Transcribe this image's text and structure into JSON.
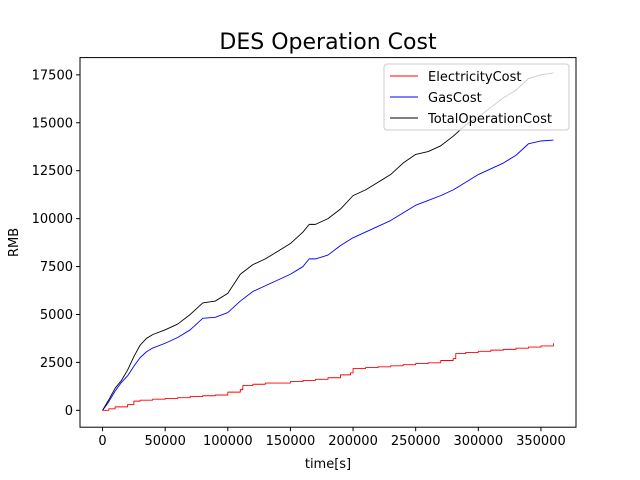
{
  "chart_data": {
    "type": "line",
    "title": "DES Operation Cost",
    "xlabel": "time[s]",
    "ylabel": "RMB",
    "xlim": [
      -18000,
      378000
    ],
    "ylim": [
      -880,
      18400
    ],
    "xticks": [
      0,
      50000,
      100000,
      150000,
      200000,
      250000,
      300000,
      350000
    ],
    "xtick_labels": [
      "0",
      "50000",
      "100000",
      "150000",
      "200000",
      "250000",
      "300000",
      "350000"
    ],
    "yticks": [
      0,
      2500,
      5000,
      7500,
      10000,
      12500,
      15000,
      17500
    ],
    "ytick_labels": [
      "0",
      "2500",
      "5000",
      "7500",
      "10000",
      "12500",
      "15000",
      "17500"
    ],
    "grid": false,
    "legend_position": "top-right",
    "series": [
      {
        "name": "ElectricityCost",
        "color": "#ff0000",
        "x": [
          0,
          5000,
          10000,
          20000,
          25000,
          30000,
          40000,
          50000,
          60000,
          70000,
          80000,
          90000,
          100000,
          110000,
          112000,
          120000,
          130000,
          150000,
          160000,
          170000,
          180000,
          190000,
          198000,
          200000,
          210000,
          220000,
          230000,
          240000,
          250000,
          260000,
          270000,
          280000,
          282000,
          290000,
          300000,
          310000,
          320000,
          330000,
          340000,
          350000,
          360000
        ],
        "y": [
          0,
          80,
          180,
          300,
          480,
          530,
          580,
          620,
          660,
          720,
          760,
          800,
          950,
          1080,
          1300,
          1360,
          1420,
          1500,
          1560,
          1620,
          1700,
          1850,
          1950,
          2180,
          2230,
          2270,
          2320,
          2380,
          2440,
          2480,
          2600,
          2700,
          2960,
          3020,
          3080,
          3140,
          3180,
          3240,
          3300,
          3360,
          3500
        ]
      },
      {
        "name": "GasCost",
        "color": "#0000ff",
        "x": [
          0,
          5000,
          10000,
          15000,
          20000,
          25000,
          30000,
          35000,
          40000,
          50000,
          60000,
          70000,
          80000,
          90000,
          100000,
          110000,
          120000,
          130000,
          140000,
          150000,
          160000,
          165000,
          170000,
          180000,
          190000,
          200000,
          210000,
          220000,
          230000,
          240000,
          250000,
          260000,
          270000,
          280000,
          290000,
          300000,
          310000,
          320000,
          330000,
          340000,
          350000,
          360000
        ],
        "y": [
          0,
          450,
          1000,
          1450,
          1800,
          2300,
          2750,
          3050,
          3250,
          3500,
          3800,
          4200,
          4800,
          4850,
          5100,
          5700,
          6200,
          6500,
          6800,
          7100,
          7500,
          7900,
          7900,
          8100,
          8600,
          9000,
          9300,
          9600,
          9900,
          10300,
          10700,
          10950,
          11200,
          11500,
          11900,
          12300,
          12600,
          12900,
          13300,
          13900,
          14050,
          14100
        ]
      },
      {
        "name": "TotalOperationCost",
        "color": "#000000",
        "x": [
          0,
          5000,
          10000,
          15000,
          20000,
          25000,
          30000,
          35000,
          40000,
          50000,
          60000,
          70000,
          80000,
          90000,
          100000,
          110000,
          120000,
          130000,
          140000,
          150000,
          160000,
          165000,
          170000,
          180000,
          190000,
          200000,
          210000,
          220000,
          230000,
          240000,
          250000,
          260000,
          270000,
          280000,
          290000,
          300000,
          310000,
          320000,
          330000,
          340000,
          350000,
          360000
        ],
        "y": [
          0,
          550,
          1150,
          1550,
          2100,
          2800,
          3400,
          3750,
          3950,
          4200,
          4500,
          5000,
          5600,
          5700,
          6100,
          7100,
          7600,
          7900,
          8300,
          8700,
          9300,
          9700,
          9700,
          10000,
          10500,
          11200,
          11500,
          11900,
          12300,
          12900,
          13350,
          13500,
          13800,
          14300,
          14900,
          15300,
          15800,
          16300,
          16700,
          17300,
          17500,
          17600
        ]
      }
    ]
  }
}
